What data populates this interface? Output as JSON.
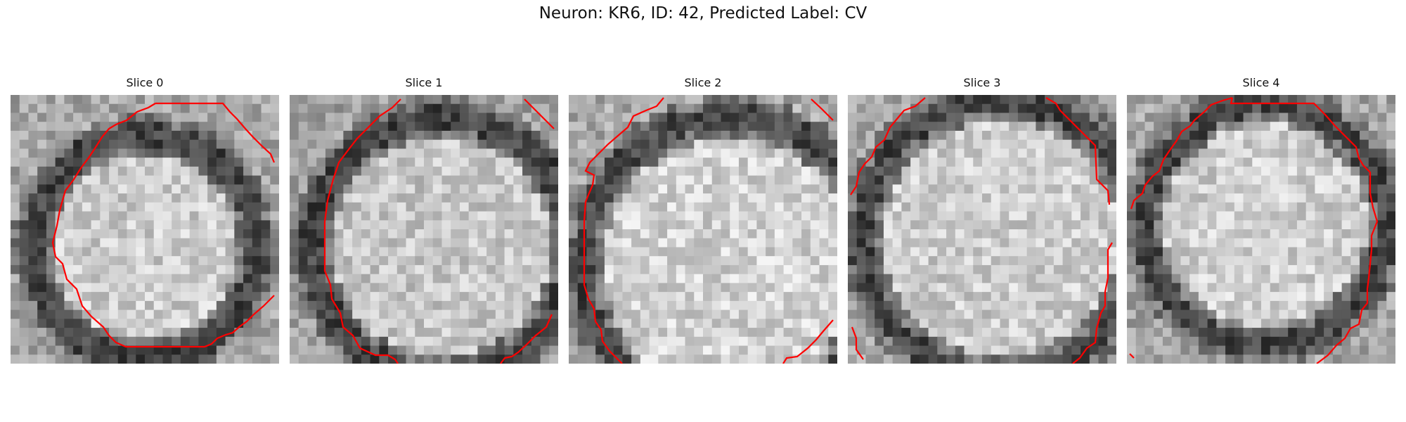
{
  "figure": {
    "title": "Neuron: KR6, ID: 42, Predicted Label: CV"
  },
  "panels": [
    {
      "title": "Slice 0",
      "brightness": 1.0
    },
    {
      "title": "Slice 1",
      "brightness": 0.97
    },
    {
      "title": "Slice 2",
      "brightness": 1.03
    },
    {
      "title": "Slice 3",
      "brightness": 1.0
    },
    {
      "title": "Slice 4",
      "brightness": 1.01
    }
  ],
  "colors": {
    "contour": "#ff0000",
    "background": "#ffffff"
  }
}
